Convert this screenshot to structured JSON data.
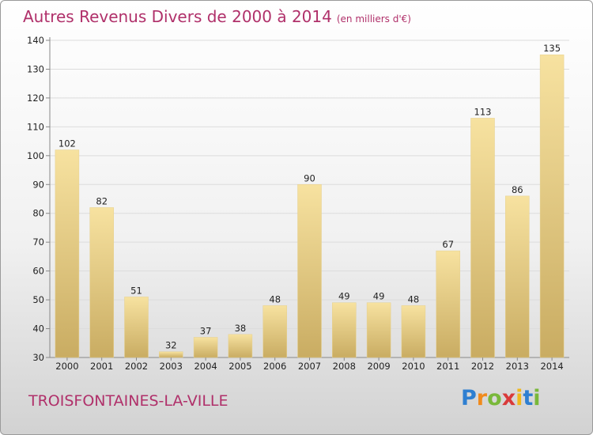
{
  "chart_data": {
    "type": "bar",
    "title": "Autres Revenus Divers de 2000 à 2014",
    "subtitle": "(en milliers d'€)",
    "categories": [
      "2000",
      "2001",
      "2002",
      "2003",
      "2004",
      "2005",
      "2006",
      "2007",
      "2008",
      "2009",
      "2010",
      "2011",
      "2012",
      "2013",
      "2014"
    ],
    "values": [
      102,
      82,
      51,
      32,
      37,
      38,
      48,
      90,
      49,
      49,
      48,
      67,
      113,
      86,
      135
    ],
    "ylim": [
      30,
      140
    ],
    "yticks": [
      30,
      40,
      50,
      60,
      70,
      80,
      90,
      100,
      110,
      120,
      130,
      140
    ],
    "grid": true,
    "bar_color": "#e8cf88"
  },
  "footer": {
    "place": "TROISFONTAINES-LA-VILLE",
    "logo_letters": [
      {
        "char": "P",
        "color": "#2e7fd1"
      },
      {
        "char": "r",
        "color": "#f08a1c"
      },
      {
        "char": "o",
        "color": "#79b83a"
      },
      {
        "char": "x",
        "color": "#d93a3a"
      },
      {
        "char": "i",
        "color": "#f0b81c"
      },
      {
        "char": "t",
        "color": "#2e7fd1"
      },
      {
        "char": "i",
        "color": "#79b83a"
      }
    ]
  },
  "colors": {
    "title": "#b0306a",
    "grid": "#dcdcdc",
    "axis": "#888888"
  }
}
